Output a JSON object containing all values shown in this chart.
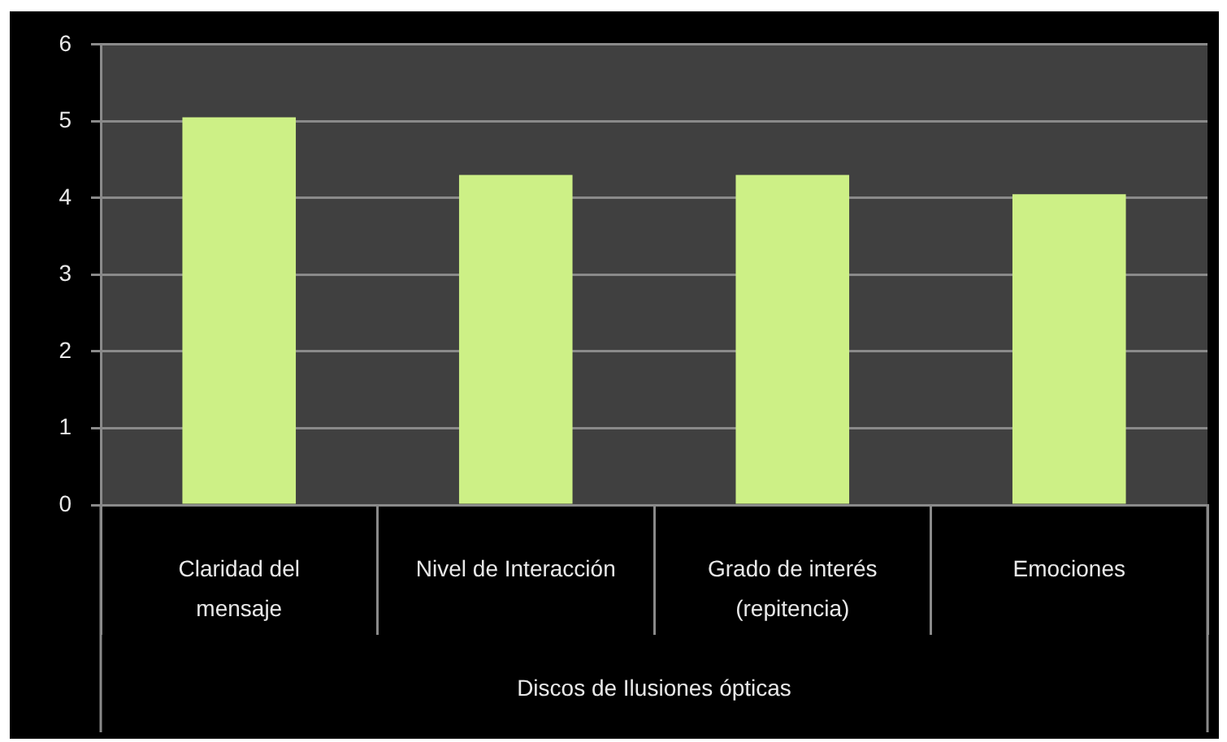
{
  "chart_data": {
    "type": "bar",
    "categories": [
      "Claridad del mensaje",
      "Nivel de Interacción",
      "Grado de interés (repitencia)",
      "Emociones"
    ],
    "values": [
      5.05,
      4.3,
      4.3,
      4.05
    ],
    "color": "#cdf086",
    "xlabel": "Discos de Ilusiones ópticas",
    "ylim": [
      0,
      6
    ],
    "yticks": [
      0,
      1,
      2,
      3,
      4,
      5,
      6
    ],
    "grid": "y",
    "legend": false
  }
}
